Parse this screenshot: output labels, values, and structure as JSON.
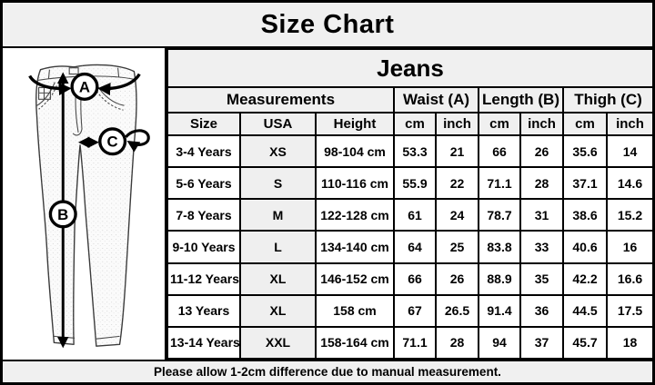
{
  "title": "Size Chart",
  "table": {
    "product": "Jeans",
    "measurements_label": "Measurements",
    "waist_label": "Waist (A)",
    "length_label": "Length (B)",
    "thigh_label": "Thigh (C)",
    "sub_headers": [
      "Size",
      "USA",
      "Height",
      "cm",
      "inch",
      "cm",
      "inch",
      "cm",
      "inch"
    ],
    "rows": [
      [
        "3-4 Years",
        "XS",
        "98-104 cm",
        "53.3",
        "21",
        "66",
        "26",
        "35.6",
        "14"
      ],
      [
        "5-6 Years",
        "S",
        "110-116 cm",
        "55.9",
        "22",
        "71.1",
        "28",
        "37.1",
        "14.6"
      ],
      [
        "7-8 Years",
        "M",
        "122-128 cm",
        "61",
        "24",
        "78.7",
        "31",
        "38.6",
        "15.2"
      ],
      [
        "9-10 Years",
        "L",
        "134-140 cm",
        "64",
        "25",
        "83.8",
        "33",
        "40.6",
        "16"
      ],
      [
        "11-12 Years",
        "XL",
        "146-152 cm",
        "66",
        "26",
        "88.9",
        "35",
        "42.2",
        "16.6"
      ],
      [
        "13 Years",
        "XL",
        "158 cm",
        "67",
        "26.5",
        "91.4",
        "36",
        "44.5",
        "17.5"
      ],
      [
        "13-14 Years",
        "XXL",
        "158-164 cm",
        "71.1",
        "28",
        "94",
        "37",
        "45.7",
        "18"
      ]
    ]
  },
  "diagram": {
    "waist_marker": "A",
    "length_marker": "B",
    "thigh_marker": "C"
  },
  "footer_note": "Please allow 1-2cm difference due to manual measurement.",
  "colors": {
    "header_bg": "#f0f0f0",
    "usa_column_bg": "#efefef",
    "cell_bg": "#ffffff",
    "border": "#000000",
    "text": "#000000"
  }
}
